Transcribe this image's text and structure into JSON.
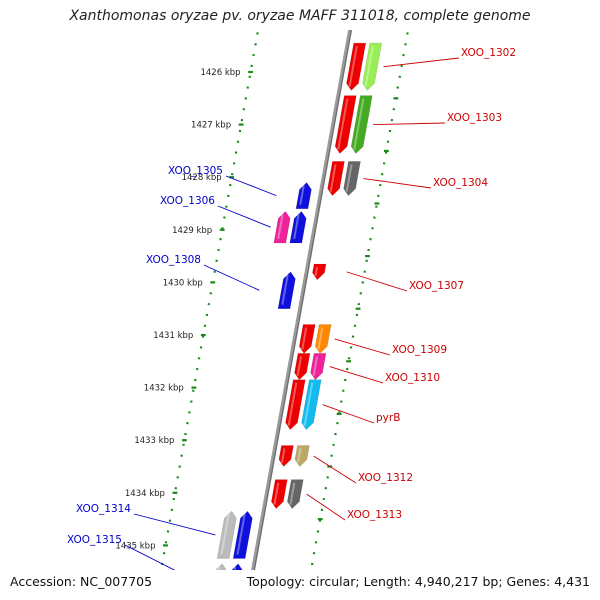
{
  "title": "Xanthomonas oryzae pv. oryzae MAFF 311018, complete genome",
  "footer": {
    "accession": "Accession: NC_007705",
    "summary": "Topology: circular; Length: 4,940,217 bp; Genes: 4,431"
  },
  "colors": {
    "forward_label": "#0000cc",
    "reverse_label": "#cc0000",
    "ruler": "#1a8a1a",
    "backbone": "#888888"
  },
  "ruler_ticks": [
    {
      "kbp": 1426,
      "label": "1426 kbp"
    },
    {
      "kbp": 1427,
      "label": "1427 kbp"
    },
    {
      "kbp": 1428,
      "label": "1428 kbp"
    },
    {
      "kbp": 1429,
      "label": "1429 kbp"
    },
    {
      "kbp": 1430,
      "label": "1430 kbp"
    },
    {
      "kbp": 1431,
      "label": "1431 kbp"
    },
    {
      "kbp": 1432,
      "label": "1432 kbp"
    },
    {
      "kbp": 1433,
      "label": "1433 kbp"
    },
    {
      "kbp": 1434,
      "label": "1434 kbp"
    },
    {
      "kbp": 1435,
      "label": "1435 kbp"
    }
  ],
  "genes": [
    {
      "name": "XOO_1302",
      "strand": "-",
      "start_kbp": 1425.45,
      "end_kbp": 1426.35,
      "colors": [
        "#ee0000",
        "#99ee55"
      ]
    },
    {
      "name": "XOO_1303",
      "strand": "-",
      "start_kbp": 1426.45,
      "end_kbp": 1427.55,
      "colors": [
        "#ee0000",
        "#44aa22"
      ]
    },
    {
      "name": "XOO_1304",
      "strand": "-",
      "start_kbp": 1427.7,
      "end_kbp": 1428.35,
      "colors": [
        "#ee0000",
        "#666666"
      ]
    },
    {
      "name": "XOO_1305",
      "strand": "+",
      "start_kbp": 1428.1,
      "end_kbp": 1428.6,
      "colors": [
        "#1010dd"
      ]
    },
    {
      "name": "XOO_1306",
      "strand": "+",
      "start_kbp": 1428.65,
      "end_kbp": 1429.25,
      "colors": [
        "#ee2299",
        "#1010dd"
      ]
    },
    {
      "name": "XOO_1307",
      "strand": "-",
      "start_kbp": 1429.65,
      "end_kbp": 1429.95,
      "colors": [
        "#ee0000"
      ]
    },
    {
      "name": "XOO_1308",
      "strand": "+",
      "start_kbp": 1429.8,
      "end_kbp": 1430.5,
      "colors": [
        "#1010dd"
      ]
    },
    {
      "name": "XOO_1309",
      "strand": "-",
      "start_kbp": 1430.8,
      "end_kbp": 1431.35,
      "colors": [
        "#ee0000",
        "#ff8800"
      ]
    },
    {
      "name": "XOO_1310",
      "strand": "-",
      "start_kbp": 1431.35,
      "end_kbp": 1431.85,
      "colors": [
        "#ee0000",
        "#ee2299"
      ]
    },
    {
      "name": "pyrB",
      "strand": "-",
      "start_kbp": 1431.85,
      "end_kbp": 1432.8,
      "colors": [
        "#ee0000",
        "#11bbee"
      ]
    },
    {
      "name": "XOO_1312",
      "strand": "-",
      "start_kbp": 1433.1,
      "end_kbp": 1433.5,
      "colors": [
        "#ee0000",
        "#bbaa66"
      ]
    },
    {
      "name": "XOO_1313",
      "strand": "-",
      "start_kbp": 1433.75,
      "end_kbp": 1434.3,
      "colors": [
        "#ee0000",
        "#666666"
      ]
    },
    {
      "name": "XOO_1314",
      "strand": "+",
      "start_kbp": 1434.35,
      "end_kbp": 1435.25,
      "colors": [
        "#bbbbbb",
        "#1010dd"
      ]
    },
    {
      "name": "XOO_1315",
      "strand": "+",
      "start_kbp": 1435.35,
      "end_kbp": 1436.2,
      "colors": [
        "#bbbbbb",
        "#1010dd"
      ]
    }
  ]
}
